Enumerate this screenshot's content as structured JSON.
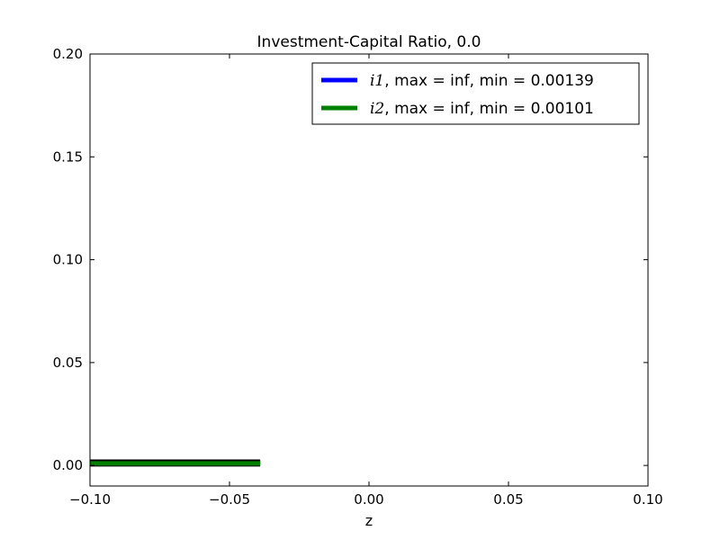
{
  "chart_data": {
    "type": "line",
    "title": "Investment-Capital Ratio, 0.0",
    "xlabel": "z",
    "ylabel": "",
    "xlim": [
      -0.1,
      0.1
    ],
    "ylim": [
      -0.01,
      0.2
    ],
    "xticks": [
      -0.1,
      -0.05,
      0.0,
      0.05,
      0.1
    ],
    "xtick_labels": [
      "−0.10",
      "−0.05",
      "0.00",
      "0.05",
      "0.10"
    ],
    "yticks": [
      0.0,
      0.05,
      0.1,
      0.15,
      0.2
    ],
    "ytick_labels": [
      "0.00",
      "0.05",
      "0.10",
      "0.15",
      "0.20"
    ],
    "grid": false,
    "legend_position": "top-right",
    "series": [
      {
        "name": "i1, max = inf, min = 0.00139",
        "var": "i1",
        "suffix": ", max = inf, min = 0.00139",
        "color": "#0000ff",
        "x": [
          -0.1,
          -0.039
        ],
        "y": [
          0.00139,
          0.00139
        ]
      },
      {
        "name": "i2, max = inf, min = 0.00101",
        "var": "i2",
        "suffix": ", max = inf, min = 0.00101",
        "color": "#008000",
        "x": [
          -0.1,
          -0.039
        ],
        "y": [
          0.00101,
          0.00101
        ]
      }
    ]
  }
}
